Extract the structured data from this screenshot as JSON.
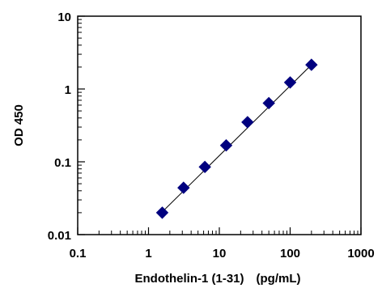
{
  "chart_data": {
    "type": "scatter",
    "title": "",
    "xlabel": "Endothelin-1 (1-31)　(pg/mL)",
    "ylabel": "OD 450",
    "x_scale": "log",
    "y_scale": "log",
    "xlim": [
      0.1,
      1000
    ],
    "ylim": [
      0.01,
      10
    ],
    "x_ticks": [
      "0.1",
      "1",
      "10",
      "100",
      "1000"
    ],
    "y_ticks": [
      "0.01",
      "0.1",
      "1",
      "10"
    ],
    "grid": false,
    "legend": "none",
    "marker": "diamond",
    "marker_color": "#00007f",
    "line_color": "#000000",
    "series": [
      {
        "x": [
          1.5625,
          3.125,
          6.25,
          12.5,
          25,
          50,
          100,
          200
        ],
        "y": [
          0.02,
          0.044,
          0.085,
          0.168,
          0.35,
          0.64,
          1.23,
          2.15
        ]
      }
    ],
    "trendline": {
      "x": [
        1.5625,
        200
      ],
      "y": [
        0.0205,
        2.15
      ]
    }
  }
}
